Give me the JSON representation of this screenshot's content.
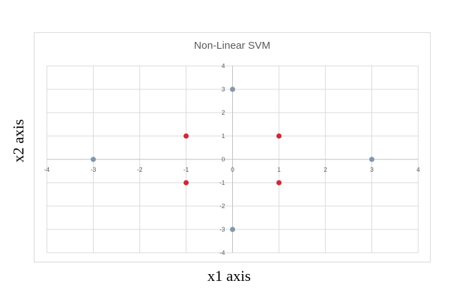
{
  "chart_data": {
    "type": "scatter",
    "title": "Non-Linear SVM",
    "xlabel": "x1 axis",
    "ylabel": "x2 axis",
    "xlim": [
      -4,
      4
    ],
    "ylim": [
      -4,
      4
    ],
    "xticks": [
      "-4",
      "-3",
      "-2",
      "-1",
      "0",
      "1",
      "2",
      "3",
      "4"
    ],
    "yticks": [
      "-4",
      "-3",
      "-2",
      "-1",
      "0",
      "1",
      "2",
      "3",
      "4"
    ],
    "grid": true,
    "legend": "none",
    "series": [
      {
        "color": "#8497a8",
        "points": [
          {
            "x": 0,
            "y": 3
          },
          {
            "x": -3,
            "y": 0
          },
          {
            "x": 3,
            "y": 0
          },
          {
            "x": 0,
            "y": -3
          }
        ]
      },
      {
        "color": "#d0283a",
        "points": [
          {
            "x": -1,
            "y": 1
          },
          {
            "x": 1,
            "y": 1
          },
          {
            "x": -1,
            "y": -1
          },
          {
            "x": 1,
            "y": -1
          }
        ]
      }
    ]
  }
}
